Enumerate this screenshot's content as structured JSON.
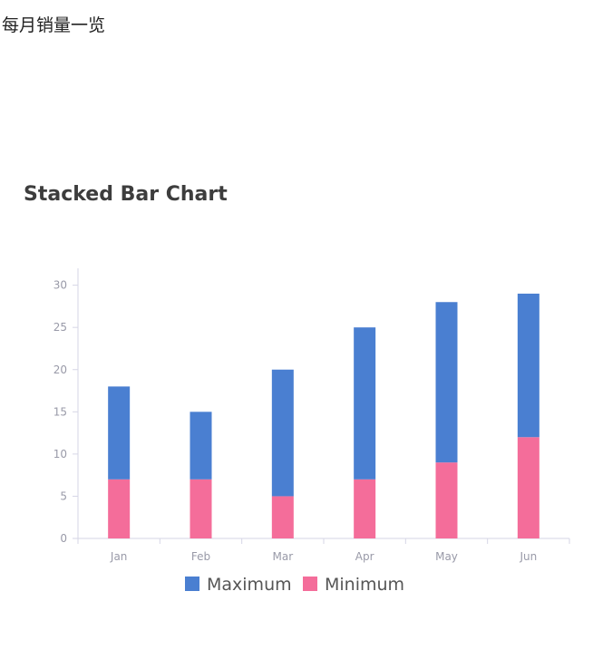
{
  "page": {
    "heading": "每月销量一览"
  },
  "chart_data": {
    "type": "bar",
    "stacked": true,
    "title": "Stacked Bar Chart",
    "xlabel": "",
    "ylabel": "",
    "categories": [
      "Jan",
      "Feb",
      "Mar",
      "Apr",
      "May",
      "Jun"
    ],
    "series": [
      {
        "name": "Minimum",
        "values": [
          7,
          7,
          5,
          7,
          9,
          12
        ],
        "color": "#f46d9a"
      },
      {
        "name": "Maximum",
        "values": [
          11,
          8,
          15,
          18,
          19,
          17
        ],
        "color": "#4a7fd1"
      }
    ],
    "stacked_totals": [
      18,
      15,
      20,
      25,
      28,
      29
    ],
    "ylim": [
      0,
      32
    ],
    "yticks": [
      0,
      5,
      10,
      15,
      20,
      25,
      30
    ],
    "grid": false,
    "legend": {
      "placement": "bottom-center",
      "items": [
        "Maximum",
        "Minimum"
      ]
    },
    "axis_color": "#d6d6e6",
    "tick_color": "#999aa8"
  }
}
